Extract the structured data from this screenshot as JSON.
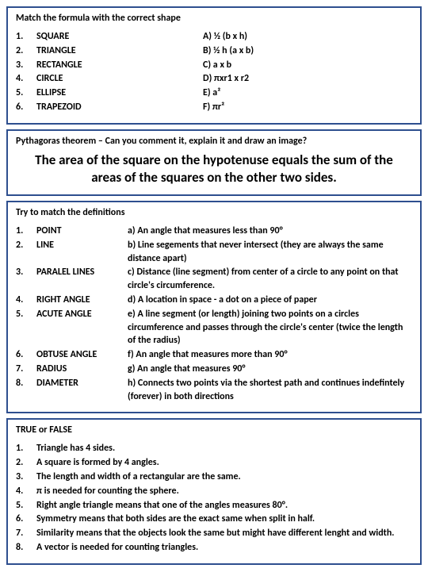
{
  "box1": {
    "title": "Match the formula with the correct shape",
    "rows": [
      {
        "n": "1.",
        "term": "SQUARE",
        "opt": "A) ½ (b x h)"
      },
      {
        "n": "2.",
        "term": "TRIANGLE",
        "opt": "B) ½ h (a x b)"
      },
      {
        "n": "3.",
        "term": "RECTANGLE",
        "opt": "C) a x b"
      },
      {
        "n": "4.",
        "term": "CIRCLE",
        "opt": "D) πxr1 x r2"
      },
      {
        "n": "5.",
        "term": "ELLIPSE",
        "opt": "E) a²"
      },
      {
        "n": "6.",
        "term": "TRAPEZOID",
        "opt": "F) πr²"
      }
    ]
  },
  "box2": {
    "title": "Pythagoras theorem – Can you comment it, explain it and draw an image?",
    "stmt": "The  area of the square on the hypotenuse equals the sum of the areas of the squares on the other two sides."
  },
  "box3": {
    "title": "Try to match the definitions",
    "rows": [
      {
        "n": "1.",
        "term": "POINT",
        "def": "a) An angle that measures less than 90°"
      },
      {
        "n": "2.",
        "term": "LINE",
        "def": "b) Line segements that never intersect (they are always the same distance apart)"
      },
      {
        "n": "3.",
        "term": "PARALEL LINES",
        "def": "c) Distance (line segment) from center of a circle to any point on that circle's circumference."
      },
      {
        "n": "4.",
        "term": "RIGHT ANGLE",
        "def": "d) A location in space - a dot on a piece of paper"
      },
      {
        "n": "5.",
        "term": "ACUTE ANGLE",
        "def": "e) A line segment (or length) joining two points on a circles circumference and passes through the circle's center (twice the length of the radius)"
      },
      {
        "n": "6.",
        "term": "OBTUSE ANGLE",
        "def": "f) An angle that measures more than 90°"
      },
      {
        "n": "7.",
        "term": "RADIUS",
        "def": "g) An angle that measures 90°"
      },
      {
        "n": "8.",
        "term": "DIAMETER",
        "def": "h) Connects two points via the shortest path and continues indefintely (forever) in both directions"
      }
    ]
  },
  "box4": {
    "title": "TRUE or FALSE",
    "rows": [
      {
        "n": "1.",
        "def": "Triangle has 4 sides."
      },
      {
        "n": "2.",
        "def": "A square is formed by 4 angles."
      },
      {
        "n": "3.",
        "def": "The length and width of a rectangular are the same."
      },
      {
        "n": "4.",
        "def": "π is needed for counting the sphere."
      },
      {
        "n": "5.",
        "def": "Right angle triangle means that one of the angles measures 80°."
      },
      {
        "n": "6.",
        "def": "Symmetry means that both sides are the exact same when split in half."
      },
      {
        "n": "7.",
        "def": "Similarity means that the objects look the same but might have different lenght and width."
      },
      {
        "n": "8.",
        "def": "A vector is needed for counting triangles."
      }
    ]
  }
}
